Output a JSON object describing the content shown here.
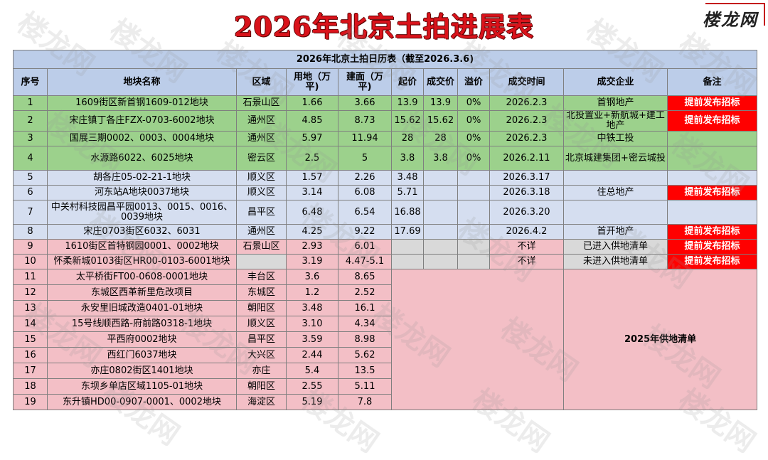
{
  "title": "2026年北京土拍进展表",
  "brand": "楼龙网",
  "watermark_text": "楼龙网",
  "table": {
    "caption": "2026年北京土拍日历表（截至2026.3.6)",
    "headers": [
      "序号",
      "地块名称",
      "区域",
      "用地（万平)",
      "建面（万平)",
      "起价",
      "成交价",
      "溢价",
      "成交时间",
      "成交企业",
      "备注"
    ],
    "rows": [
      {
        "no": "1",
        "name": "1609街区新首钢1609-012地块",
        "district": "石景山区",
        "land": "1.66",
        "build": "3.66",
        "start": "13.9",
        "deal": "13.9",
        "premium": "0%",
        "time": "2026.2.3",
        "company": "首钢地产",
        "note": "提前发布招标"
      },
      {
        "no": "2",
        "name": "宋庄镇丁各庄FZX-0703-6002地块",
        "district": "通州区",
        "land": "4.85",
        "build": "8.73",
        "start": "15.62",
        "deal": "15.62",
        "premium": "0%",
        "time": "2026.2.3",
        "company": "北投置业+新航城+建工地产",
        "note": "提前发布招标"
      },
      {
        "no": "3",
        "name": "国展三期0002、0003、0004地块",
        "district": "通州区",
        "land": "5.97",
        "build": "11.94",
        "start": "28",
        "deal": "28",
        "premium": "0%",
        "time": "2026.2.3",
        "company": "中铁工投",
        "note": ""
      },
      {
        "no": "4",
        "name": "水源路6022、6025地块",
        "district": "密云区",
        "land": "2.5",
        "build": "5",
        "start": "3.8",
        "deal": "3.8",
        "premium": "0%",
        "time": "2026.2.11",
        "company": "北京城建集团+密云城投",
        "note": ""
      },
      {
        "no": "5",
        "name": "胡各庄05-02-21-1地块",
        "district": "顺义区",
        "land": "1.57",
        "build": "2.26",
        "start": "3.48",
        "deal": "",
        "premium": "",
        "time": "2026.3.17",
        "company": "",
        "note": ""
      },
      {
        "no": "6",
        "name": "河东站A地块0037地块",
        "district": "顺义区",
        "land": "3.14",
        "build": "6.08",
        "start": "5.71",
        "deal": "",
        "premium": "",
        "time": "2026.3.18",
        "company": "住总地产",
        "note": "提前发布招标"
      },
      {
        "no": "7",
        "name": "中关村科技园昌平园0013、0015、0016、0039地块",
        "district": "昌平区",
        "land": "6.48",
        "build": "6.54",
        "start": "16.88",
        "deal": "",
        "premium": "",
        "time": "2026.3.20",
        "company": "",
        "note": ""
      },
      {
        "no": "8",
        "name": "宋庄0703街区6032、6031",
        "district": "通州区",
        "land": "4.25",
        "build": "9.22",
        "start": "17.69",
        "deal": "",
        "premium": "",
        "time": "2026.4.2",
        "company": "首开地产",
        "note": "提前发布招标"
      },
      {
        "no": "9",
        "name": "1610街区首特钢园0001、0002地块",
        "district": "石景山区",
        "land": "2.93",
        "build": "6.01",
        "start": "",
        "deal": "",
        "premium": "",
        "time": "不详",
        "company": "已进入供地清单",
        "note": "提前发布招标"
      },
      {
        "no": "10",
        "name": "怀柔新城0103街区HR00-0103-6001地块",
        "district": "",
        "land": "3.19",
        "build": "4.47-5.1",
        "start": "",
        "deal": "",
        "premium": "",
        "time": "不详",
        "company": "未进入供地清单",
        "note": "提前发布招标"
      },
      {
        "no": "11",
        "name": "太平桥街FT00-0608-0001地块",
        "district": "丰台区",
        "land": "3.6",
        "build": "8.65"
      },
      {
        "no": "12",
        "name": "东城区西革新里危改项目",
        "district": "东城区",
        "land": "1.2",
        "build": "2.52"
      },
      {
        "no": "13",
        "name": "永安里旧城改造0401-01地块",
        "district": "朝阳区",
        "land": "3.48",
        "build": "16.1"
      },
      {
        "no": "14",
        "name": "15号线顺西路-府前路0318-1地块",
        "district": "顺义区",
        "land": "3.10",
        "build": "4.34"
      },
      {
        "no": "15",
        "name": "平西府0002地块",
        "district": "昌平区",
        "land": "3.59",
        "build": "8.98"
      },
      {
        "no": "16",
        "name": "西红门6037地块",
        "district": "大兴区",
        "land": "2.44",
        "build": "5.62"
      },
      {
        "no": "17",
        "name": "亦庄0802街区1401地块",
        "district": "亦庄",
        "land": "5.4",
        "build": "13.5"
      },
      {
        "no": "18",
        "name": "东坝乡单店区域1105-01地块",
        "district": "朝阳区",
        "land": "2.55",
        "build": "5.11"
      },
      {
        "no": "19",
        "name": "东升镇HD00-0907-0001、0002地块",
        "district": "海淀区",
        "land": "5.19",
        "build": "7.8"
      }
    ],
    "supply_2025_label": "2025年供地清单"
  }
}
